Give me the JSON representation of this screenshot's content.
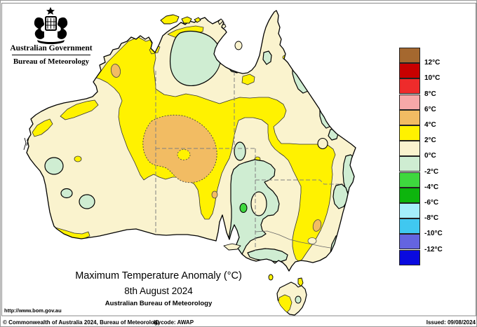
{
  "logo": {
    "gov_title": "Australian Government",
    "bureau_title": "Bureau of Meteorology"
  },
  "map": {
    "title": "Maximum Temperature Anomaly (°C)",
    "date": "8th August 2024",
    "source": "Australian Bureau of Meteorology"
  },
  "legend": {
    "unit": "°C",
    "colors_top_to_bottom": [
      "#A5682F",
      "#C80000",
      "#EE2B2B",
      "#F7A8A8",
      "#F2BC63",
      "#FFF200",
      "#FAF3CE",
      "#CFEDD2",
      "#3ED83E",
      "#0DB50D",
      "#A5EFFB",
      "#40C8F0",
      "#6464E0",
      "#0A0ADF"
    ],
    "labels_top_to_bottom": [
      "12°C",
      "10°C",
      "8°C",
      "6°C",
      "4°C",
      "2°C",
      "0°C",
      "-2°C",
      "-4°C",
      "-6°C",
      "-8°C",
      "-10°C",
      "-12°C"
    ]
  },
  "palette": {
    "sea": "#FFFFFF",
    "cream_0_2": "#FAF3CE",
    "yellow_2_4": "#FFF200",
    "orange_4_6": "#F2BC63",
    "palegreen_m2_0": "#CFEDD2",
    "green_m4_m2": "#3ED83E",
    "coast_line": "#000000",
    "state_border": "#808080"
  },
  "map_data": {
    "type": "choropleth-anomaly-map",
    "regions": [
      {
        "area": "central Australia near NT/SA border",
        "anomaly_c": "+4 to +6"
      },
      {
        "area": "Kimberley, central WA-NT corridor, inland Queensland snake, inland NSW band, SW WA tip, Pilbara coast, SW Tasmania",
        "anomaly_c": "+2 to +4"
      },
      {
        "area": "most of remaining continent",
        "anomaly_c": "0 to +2"
      },
      {
        "area": "Top End (Arnhem Land), SA-QLD-NSW-Vic border region, QLD east-coast strips, southern WA pockets, east Tasmania pocket",
        "anomaly_c": "-2 to 0"
      },
      {
        "area": "small pocket near SA-NSW border",
        "anomaly_c": "-4 to -2"
      }
    ]
  },
  "footer": {
    "url": "http://www.bom.gov.au",
    "copyright": "© Commonwealth of Australia 2024, Bureau of Meteorology",
    "id_code": "ID code: AWAP",
    "issued": "Issued: 09/08/2024"
  }
}
